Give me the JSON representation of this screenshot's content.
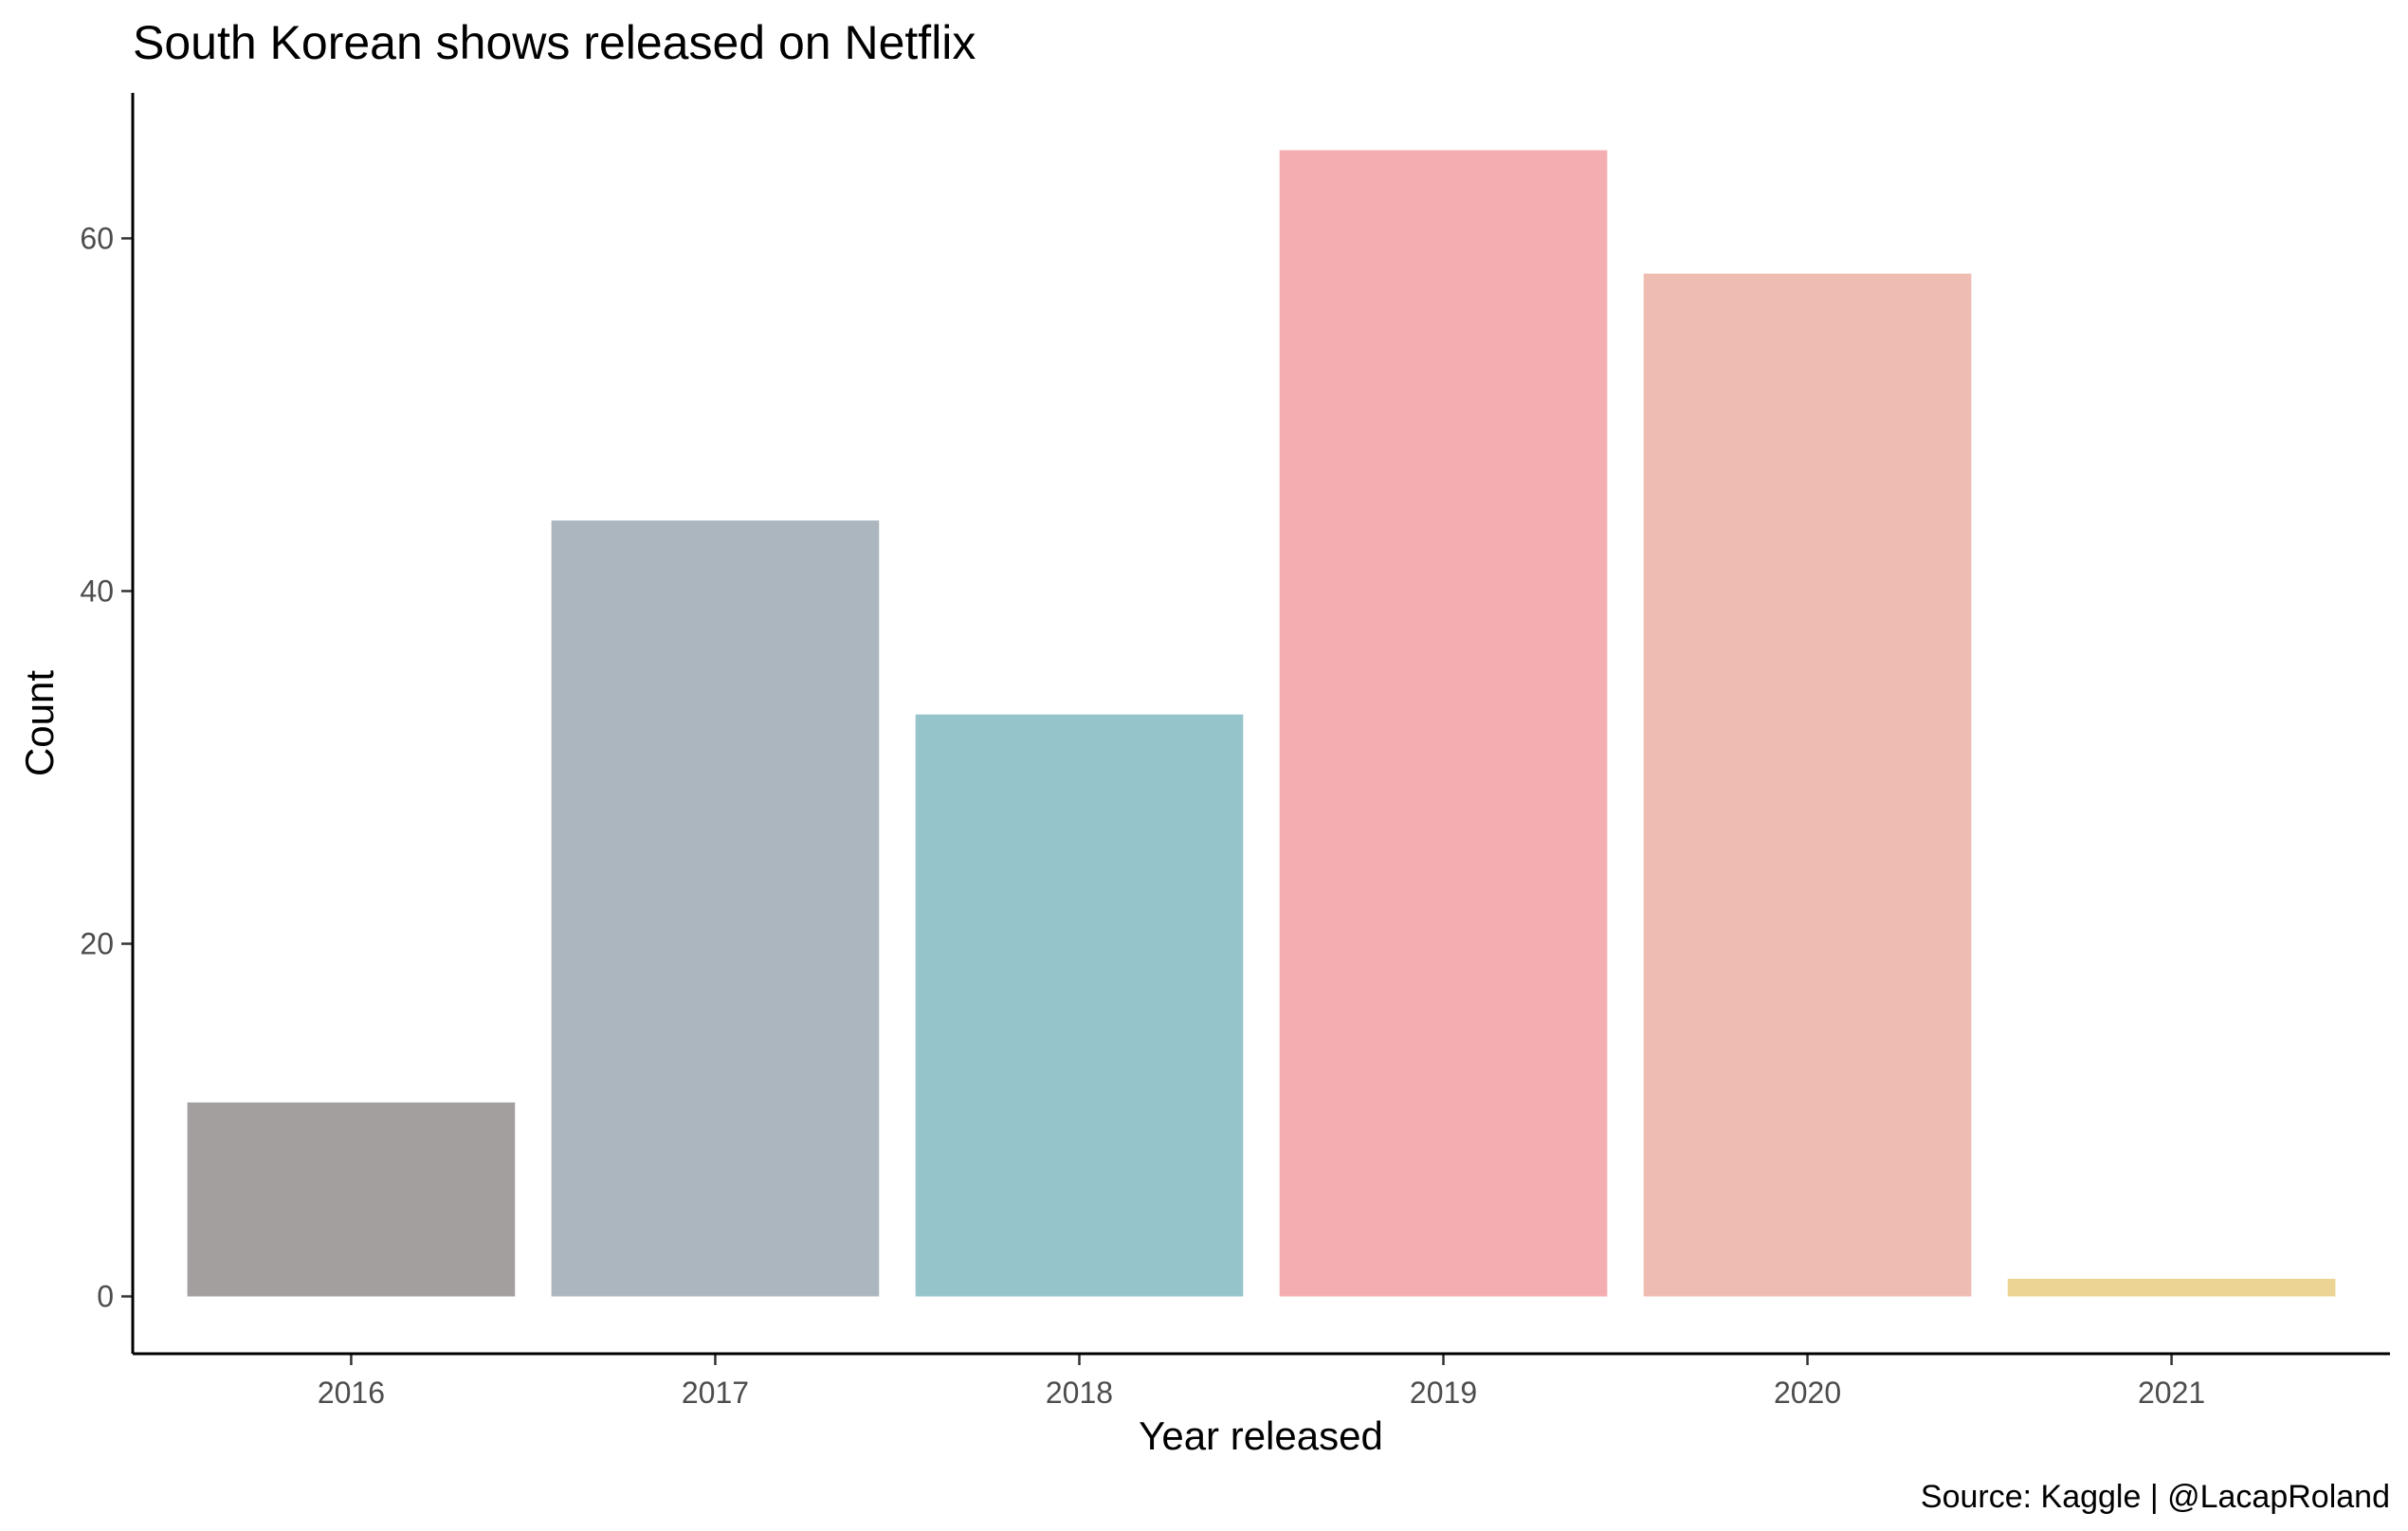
{
  "chart_data": {
    "type": "bar",
    "title": "South Korean shows released on Netflix",
    "xlabel": "Year released",
    "ylabel": "Count",
    "caption": "Source: Kaggle | @LacapRoland",
    "categories": [
      "2016",
      "2017",
      "2018",
      "2019",
      "2020",
      "2021"
    ],
    "values": [
      11,
      44,
      33,
      65,
      58,
      1
    ],
    "colors": [
      "#a49f9f",
      "#abb6be",
      "#95c4cb",
      "#f4adb1",
      "#eebcb1",
      "#ebd494"
    ],
    "ylim": [
      -3.25,
      68.25
    ],
    "yticks": [
      0,
      20,
      40,
      60
    ],
    "grid": false,
    "legend": "none"
  }
}
